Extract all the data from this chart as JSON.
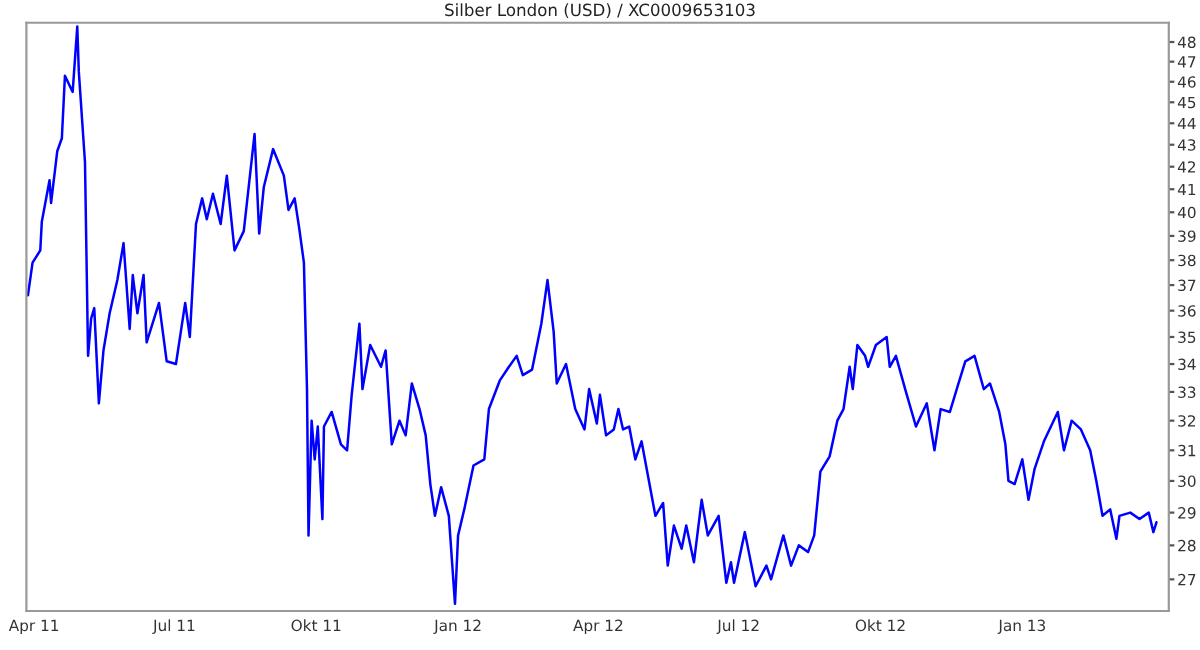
{
  "chart_data": {
    "type": "line",
    "title": "Silber London (USD) / XC0009653103",
    "x": [
      "2011-03-28",
      "2011-03-31",
      "2011-04-05",
      "2011-04-06",
      "2011-04-11",
      "2011-04-12",
      "2011-04-16",
      "2011-04-19",
      "2011-04-21",
      "2011-04-26",
      "2011-04-29",
      "2011-04-30",
      "2011-05-04",
      "2011-05-06",
      "2011-05-08",
      "2011-05-10",
      "2011-05-13",
      "2011-05-16",
      "2011-05-20",
      "2011-05-25",
      "2011-05-29",
      "2011-06-02",
      "2011-06-04",
      "2011-06-07",
      "2011-06-11",
      "2011-06-13",
      "2011-06-21",
      "2011-06-26",
      "2011-07-02",
      "2011-07-08",
      "2011-07-11",
      "2011-07-15",
      "2011-07-19",
      "2011-07-22",
      "2011-07-26",
      "2011-07-31",
      "2011-08-04",
      "2011-08-09",
      "2011-08-15",
      "2011-08-22",
      "2011-08-25",
      "2011-08-28",
      "2011-09-03",
      "2011-09-10",
      "2011-09-13",
      "2011-09-17",
      "2011-09-20",
      "2011-09-23",
      "2011-09-25",
      "2011-09-26",
      "2011-09-28",
      "2011-09-30",
      "2011-10-02",
      "2011-10-05",
      "2011-10-06",
      "2011-10-11",
      "2011-10-17",
      "2011-10-21",
      "2011-10-24",
      "2011-10-29",
      "2011-10-31",
      "2011-11-05",
      "2011-11-12",
      "2011-11-15",
      "2011-11-19",
      "2011-11-24",
      "2011-11-28",
      "2011-12-02",
      "2011-12-07",
      "2011-12-11",
      "2011-12-14",
      "2011-12-17",
      "2011-12-21",
      "2011-12-26",
      "2011-12-30",
      "2012-01-01",
      "2012-01-05",
      "2012-01-11",
      "2012-01-18",
      "2012-01-21",
      "2012-01-28",
      "2012-02-03",
      "2012-02-08",
      "2012-02-12",
      "2012-02-18",
      "2012-02-24",
      "2012-02-28",
      "2012-03-03",
      "2012-03-05",
      "2012-03-11",
      "2012-03-17",
      "2012-03-23",
      "2012-03-26",
      "2012-03-31",
      "2012-04-02",
      "2012-04-06",
      "2012-04-11",
      "2012-04-14",
      "2012-04-17",
      "2012-04-21",
      "2012-04-25",
      "2012-04-29",
      "2012-05-08",
      "2012-05-13",
      "2012-05-16",
      "2012-05-20",
      "2012-05-25",
      "2012-05-28",
      "2012-06-02",
      "2012-06-07",
      "2012-06-11",
      "2012-06-18",
      "2012-06-23",
      "2012-06-26",
      "2012-06-28",
      "2012-07-05",
      "2012-07-12",
      "2012-07-19",
      "2012-07-22",
      "2012-07-30",
      "2012-08-04",
      "2012-08-09",
      "2012-08-15",
      "2012-08-19",
      "2012-08-23",
      "2012-08-29",
      "2012-09-03",
      "2012-09-07",
      "2012-09-11",
      "2012-09-13",
      "2012-09-16",
      "2012-09-21",
      "2012-09-23",
      "2012-09-28",
      "2012-10-05",
      "2012-10-07",
      "2012-10-11",
      "2012-10-17",
      "2012-10-24",
      "2012-10-31",
      "2012-11-05",
      "2012-11-09",
      "2012-11-15",
      "2012-11-20",
      "2012-11-25",
      "2012-12-01",
      "2012-12-07",
      "2012-12-11",
      "2012-12-17",
      "2012-12-21",
      "2012-12-23",
      "2012-12-27",
      "2013-01-01",
      "2013-01-05",
      "2013-01-09",
      "2013-01-15",
      "2013-01-24",
      "2013-01-28",
      "2013-02-02",
      "2013-02-08",
      "2013-02-14",
      "2013-02-18",
      "2013-02-22",
      "2013-02-27",
      "2013-03-03",
      "2013-03-05",
      "2013-03-12",
      "2013-03-18",
      "2013-03-24",
      "2013-03-27",
      "2013-03-29"
    ],
    "series": [
      {
        "color": "#0000ff",
        "values": [
          36.6,
          37.9,
          38.4,
          39.6,
          41.4,
          40.4,
          42.7,
          43.3,
          46.3,
          45.5,
          48.8,
          46.5,
          42.2,
          34.3,
          35.7,
          36.1,
          32.6,
          34.5,
          35.9,
          37.2,
          38.7,
          35.3,
          37.4,
          35.9,
          37.4,
          34.8,
          36.3,
          34.1,
          34.0,
          36.3,
          35.0,
          39.5,
          40.6,
          39.7,
          40.8,
          39.5,
          41.6,
          38.4,
          39.2,
          43.5,
          39.1,
          41.1,
          42.8,
          41.6,
          40.1,
          40.6,
          39.3,
          37.9,
          33.1,
          28.3,
          32.0,
          30.7,
          31.8,
          28.8,
          31.8,
          32.3,
          31.2,
          31.0,
          32.9,
          35.5,
          33.1,
          34.7,
          33.9,
          34.5,
          31.2,
          32.0,
          31.5,
          33.3,
          32.4,
          31.5,
          29.9,
          28.9,
          29.8,
          28.9,
          26.3,
          28.3,
          29.1,
          30.5,
          30.7,
          32.4,
          33.4,
          33.9,
          34.3,
          33.6,
          33.8,
          35.5,
          37.2,
          35.2,
          33.3,
          34.0,
          32.4,
          31.7,
          33.1,
          31.9,
          32.9,
          31.5,
          31.7,
          32.4,
          31.7,
          31.8,
          30.7,
          31.3,
          28.9,
          29.3,
          27.4,
          28.6,
          27.9,
          28.6,
          27.5,
          29.4,
          28.3,
          28.9,
          26.9,
          27.5,
          26.9,
          28.4,
          26.8,
          27.4,
          27.0,
          28.3,
          27.4,
          28.0,
          27.8,
          28.3,
          30.3,
          30.8,
          32.0,
          32.4,
          33.9,
          33.1,
          34.7,
          34.3,
          33.9,
          34.7,
          35.0,
          33.9,
          34.3,
          33.1,
          31.8,
          32.6,
          31.0,
          32.4,
          32.3,
          33.2,
          34.1,
          34.3,
          33.1,
          33.3,
          32.3,
          31.2,
          30.0,
          29.9,
          30.7,
          29.4,
          30.4,
          31.3,
          32.3,
          31.0,
          32.0,
          31.7,
          31.0,
          30.0,
          28.9,
          29.1,
          28.2,
          28.9,
          29.0,
          28.8,
          29.0,
          28.4,
          28.7
        ]
      }
    ],
    "xlim": [
      "2011-03-27",
      "2013-04-06"
    ],
    "xticks": [
      {
        "value": "2011-04-01",
        "label": "Apr 11"
      },
      {
        "value": "2011-07-01",
        "label": "Jul 11"
      },
      {
        "value": "2011-10-01",
        "label": "Okt 11"
      },
      {
        "value": "2012-01-01",
        "label": "Jan 12"
      },
      {
        "value": "2012-04-01",
        "label": "Apr 12"
      },
      {
        "value": "2012-07-01",
        "label": "Jul 12"
      },
      {
        "value": "2012-10-01",
        "label": "Okt 12"
      },
      {
        "value": "2013-01-01",
        "label": "Jan 13"
      }
    ],
    "ylim": [
      26.1,
      49.0
    ],
    "yticks": [
      27,
      28,
      29,
      30,
      31,
      32,
      33,
      34,
      35,
      36,
      37,
      38,
      39,
      40,
      41,
      42,
      43,
      44,
      45,
      46,
      47,
      48
    ],
    "log": true,
    "grid": false,
    "legend": false
  }
}
